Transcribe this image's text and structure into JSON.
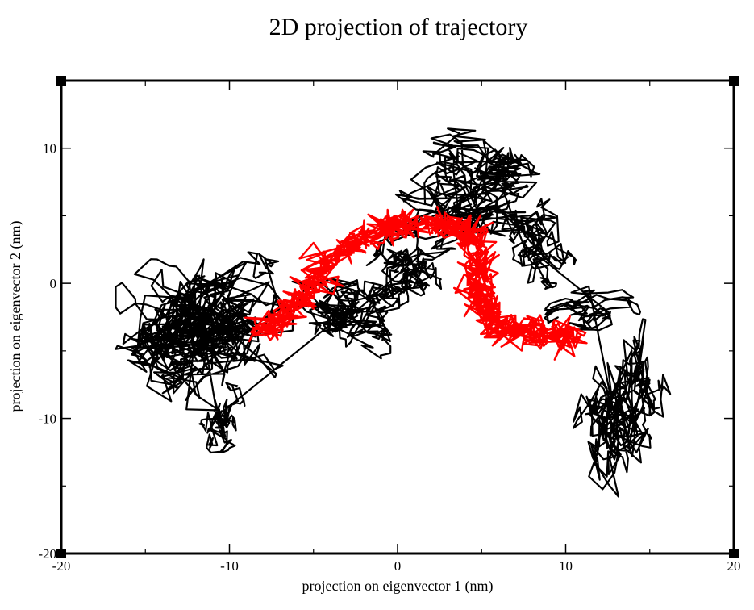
{
  "chart_data": {
    "type": "line",
    "title": "2D projection of trajectory",
    "xlabel": "projection on eigenvector 1 (nm)",
    "ylabel": "projection on eigenvector 2 (nm)",
    "xlim": [
      -20,
      20
    ],
    "ylim": [
      -20,
      15
    ],
    "xticks": [
      -20,
      -10,
      0,
      10,
      20
    ],
    "yticks": [
      -20,
      -10,
      0,
      10
    ],
    "xtick_labels": [
      "-20",
      "-10",
      "0",
      "10",
      "20"
    ],
    "ytick_labels": [
      "-20",
      "-10",
      "0",
      "10"
    ],
    "grid": false,
    "legend": "none",
    "series": [
      {
        "color": "#000000",
        "clusters": [
          {
            "center": [
              -11.5,
              -3.5
            ],
            "spread": [
              2.6,
              3.2
            ],
            "points": 700
          },
          {
            "center": [
              -10.5,
              -10.5
            ],
            "spread": [
              0.9,
              1.6
            ],
            "points": 120
          },
          {
            "center": [
              -2.5,
              -2.0
            ],
            "spread": [
              2.0,
              1.8
            ],
            "points": 260
          },
          {
            "center": [
              1.0,
              1.5
            ],
            "spread": [
              1.4,
              1.6
            ],
            "points": 200
          },
          {
            "center": [
              4.5,
              7.0
            ],
            "spread": [
              2.8,
              2.2
            ],
            "points": 380
          },
          {
            "center": [
              8.0,
              3.5
            ],
            "spread": [
              1.4,
              2.0
            ],
            "points": 150
          },
          {
            "center": [
              11.5,
              -2.0
            ],
            "spread": [
              1.6,
              1.2
            ],
            "points": 120
          },
          {
            "center": [
              13.5,
              -8.5
            ],
            "spread": [
              1.5,
              3.6
            ],
            "points": 340
          }
        ]
      },
      {
        "color": "#ff0000",
        "path": [
          [
            -8.0,
            -3.5
          ],
          [
            -7.0,
            -2.5
          ],
          [
            -5.8,
            -1.3
          ],
          [
            -4.8,
            0.2
          ],
          [
            -4.0,
            2.0
          ],
          [
            -2.5,
            3.0
          ],
          [
            -1.0,
            4.0
          ],
          [
            0.5,
            4.5
          ],
          [
            2.0,
            4.3
          ],
          [
            3.5,
            4.0
          ],
          [
            4.5,
            3.5
          ],
          [
            4.8,
            1.5
          ],
          [
            4.8,
            0.0
          ],
          [
            5.0,
            -1.2
          ],
          [
            5.5,
            -2.8
          ],
          [
            6.5,
            -3.5
          ],
          [
            8.0,
            -3.6
          ],
          [
            9.5,
            -3.8
          ],
          [
            10.5,
            -4.0
          ]
        ],
        "spread": 0.55,
        "points": 900
      }
    ]
  }
}
